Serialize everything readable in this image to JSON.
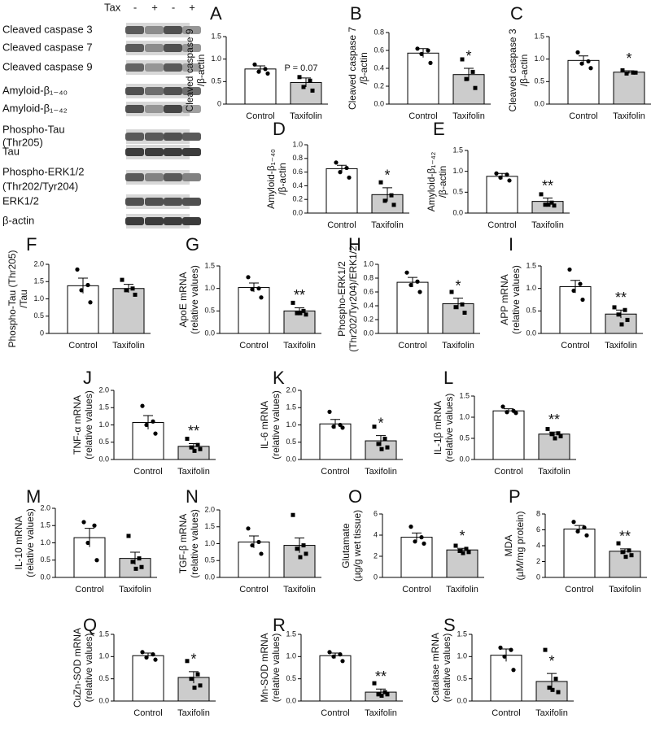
{
  "blot": {
    "lane_header": "Tax",
    "lanes": [
      "-",
      "+",
      "-",
      "+"
    ],
    "labels": [
      "Cleaved caspase 3",
      "Cleaved caspase 7",
      "Cleaved caspase 9",
      "Amyloid-β₁₋₄₀",
      "Amyloid-β₁₋₄₂",
      "Phospho-Tau",
      "(Thr205)",
      "Tau",
      "Phospho-ERK1/2",
      "(Thr202/Tyr204)",
      "ERK1/2",
      "β-actin"
    ]
  },
  "chart_data": [
    {
      "type": "bar",
      "panel": "A",
      "ylabel": [
        "Cleaved caspase 9",
        "/β-actin"
      ],
      "categories": [
        "Control",
        "Taxifolin"
      ],
      "colors": [
        "#ffffff",
        "#cccccc"
      ],
      "values": [
        0.78,
        0.48
      ],
      "errors": [
        0.07,
        0.1
      ],
      "points": [
        [
          0.88,
          0.78,
          0.72,
          0.68
        ],
        [
          0.6,
          0.52,
          0.38,
          0.3
        ]
      ],
      "annotation": "P = 0.07",
      "ylim": [
        0,
        1.5
      ],
      "yticks": [
        0,
        0.5,
        {
          "value": 1,
          "label": "1.0"
        },
        1.5
      ]
    },
    {
      "type": "bar",
      "panel": "B",
      "ylabel": [
        "Cleaved caspase 7",
        "/β-actin"
      ],
      "categories": [
        "Control",
        "Taxifolin"
      ],
      "colors": [
        "#ffffff",
        "#cccccc"
      ],
      "values": [
        0.57,
        0.33
      ],
      "errors": [
        0.05,
        0.07
      ],
      "points": [
        [
          0.62,
          0.6,
          0.56,
          0.46
        ],
        [
          0.5,
          0.36,
          0.28,
          0.18
        ]
      ],
      "annotation": "*",
      "ylim": [
        0,
        0.8
      ],
      "yticks": [
        {
          "value": 0,
          "label": "0.0"
        },
        0.2,
        0.4,
        0.6,
        0.8
      ]
    },
    {
      "type": "bar",
      "panel": "C",
      "ylabel": [
        "Cleaved caspase 3",
        "/β-actin"
      ],
      "categories": [
        "Control",
        "Taxifolin"
      ],
      "colors": [
        "#ffffff",
        "#cccccc"
      ],
      "values": [
        0.97,
        0.71
      ],
      "errors": [
        0.1,
        0.03
      ],
      "points": [
        [
          1.15,
          0.95,
          0.9,
          0.8
        ],
        [
          0.75,
          0.7,
          0.68,
          0.7
        ]
      ],
      "annotation": "*",
      "ylim": [
        0,
        1.5
      ],
      "yticks": [
        {
          "value": 0,
          "label": "0.0"
        },
        0.5,
        {
          "value": 1,
          "label": "1.0"
        },
        1.5
      ]
    },
    {
      "type": "bar",
      "panel": "D",
      "ylabel": [
        "Amyloid-β₁₋₄₀",
        "/β-actin"
      ],
      "categories": [
        "Control",
        "Taxifolin"
      ],
      "colors": [
        "#ffffff",
        "#cccccc"
      ],
      "values": [
        0.65,
        0.27
      ],
      "errors": [
        0.05,
        0.1
      ],
      "points": [
        [
          0.74,
          0.66,
          0.6,
          0.52
        ],
        [
          0.45,
          0.26,
          0.18,
          0.12
        ]
      ],
      "annotation": "*",
      "ylim": [
        0,
        1
      ],
      "yticks": [
        {
          "value": 0,
          "label": "0.0"
        },
        0.2,
        0.4,
        0.6,
        0.8,
        {
          "value": 1,
          "label": "1.0"
        }
      ]
    },
    {
      "type": "bar",
      "panel": "E",
      "ylabel": [
        "Amyloid-β₁₋₄₂",
        "/β-actin"
      ],
      "categories": [
        "Control",
        "Taxifolin"
      ],
      "colors": [
        "#ffffff",
        "#cccccc"
      ],
      "values": [
        0.88,
        0.28
      ],
      "errors": [
        0.07,
        0.08
      ],
      "points": [
        [
          0.95,
          0.92,
          0.85,
          0.78
        ],
        [
          0.45,
          0.25,
          0.2,
          0.18,
          0.2
        ]
      ],
      "annotation": "**",
      "ylim": [
        0,
        1.5
      ],
      "yticks": [
        {
          "value": 0,
          "label": "0.0"
        },
        0.5,
        {
          "value": 1,
          "label": "1.0"
        },
        1.5
      ]
    },
    {
      "type": "bar",
      "panel": "F",
      "ylabel": [
        "Phospho-Tau (Thr205)",
        "/Tau"
      ],
      "categories": [
        "Control",
        "Taxifolin"
      ],
      "colors": [
        "#ffffff",
        "#cccccc"
      ],
      "values": [
        1.38,
        1.3
      ],
      "errors": [
        0.22,
        0.12
      ],
      "points": [
        [
          1.85,
          1.4,
          1.25,
          0.9
        ],
        [
          1.55,
          1.3,
          1.25,
          1.12
        ]
      ],
      "ylim": [
        0,
        2
      ],
      "yticks": [
        0,
        0.5,
        {
          "value": 1,
          "label": "1.0"
        },
        1.5,
        {
          "value": 2,
          "label": "2.0"
        }
      ]
    },
    {
      "type": "bar",
      "panel": "G",
      "ylabel": [
        "ApoE mRNA",
        "(relative values)"
      ],
      "categories": [
        "Control",
        "Taxifolin"
      ],
      "colors": [
        "#ffffff",
        "#cccccc"
      ],
      "values": [
        1.02,
        0.5
      ],
      "errors": [
        0.1,
        0.07
      ],
      "points": [
        [
          1.25,
          1.0,
          0.98,
          0.8
        ],
        [
          0.68,
          0.5,
          0.45,
          0.42,
          0.45
        ]
      ],
      "annotation": "**",
      "ylim": [
        0,
        1.5
      ],
      "yticks": [
        {
          "value": 0,
          "label": "0.0"
        },
        0.5,
        {
          "value": 1,
          "label": "1.0"
        },
        1.5
      ]
    },
    {
      "type": "bar",
      "panel": "H",
      "ylabel": [
        "Phospho-ERK1/2",
        "(Thr202/Tyr204)/ERK1/2"
      ],
      "categories": [
        "Control",
        "Taxifolin"
      ],
      "colors": [
        "#ffffff",
        "#cccccc"
      ],
      "values": [
        0.74,
        0.43
      ],
      "errors": [
        0.07,
        0.08
      ],
      "points": [
        [
          0.88,
          0.75,
          0.7,
          0.6
        ],
        [
          0.6,
          0.42,
          0.38,
          0.3
        ]
      ],
      "annotation": "*",
      "ylim": [
        0,
        1
      ],
      "yticks": [
        {
          "value": 0,
          "label": "0.0"
        },
        0.2,
        0.4,
        0.6,
        0.8,
        {
          "value": 1,
          "label": "1.0"
        }
      ]
    },
    {
      "type": "bar",
      "panel": "I",
      "ylabel": [
        "APP mRNA",
        "(relative values)"
      ],
      "categories": [
        "Control",
        "Taxifolin"
      ],
      "colors": [
        "#ffffff",
        "#cccccc"
      ],
      "values": [
        1.04,
        0.43
      ],
      "errors": [
        0.14,
        0.09
      ],
      "points": [
        [
          1.42,
          1.1,
          0.95,
          0.75
        ],
        [
          0.58,
          0.52,
          0.42,
          0.3,
          0.2
        ]
      ],
      "annotation": "**",
      "ylim": [
        0,
        1.5
      ],
      "yticks": [
        {
          "value": 0,
          "label": "0.0"
        },
        0.5,
        {
          "value": 1,
          "label": "1.0"
        },
        1.5
      ]
    },
    {
      "type": "bar",
      "panel": "J",
      "ylabel": [
        "TNF-α mRNA",
        "(relative values)"
      ],
      "categories": [
        "Control",
        "Taxifolin"
      ],
      "colors": [
        "#ffffff",
        "#cccccc"
      ],
      "values": [
        1.07,
        0.38
      ],
      "errors": [
        0.2,
        0.08
      ],
      "points": [
        [
          1.55,
          1.1,
          1.0,
          0.75
        ],
        [
          0.6,
          0.42,
          0.35,
          0.3,
          0.25
        ]
      ],
      "annotation": "**",
      "ylim": [
        0,
        2
      ],
      "yticks": [
        {
          "value": 0,
          "label": "0.0"
        },
        0.5,
        {
          "value": 1,
          "label": "1.0"
        },
        1.5,
        {
          "value": 2,
          "label": "2.0"
        }
      ]
    },
    {
      "type": "bar",
      "panel": "K",
      "ylabel": [
        "IL-6 mRNA",
        "(relative values)"
      ],
      "categories": [
        "Control",
        "Taxifolin"
      ],
      "colors": [
        "#ffffff",
        "#cccccc"
      ],
      "values": [
        1.03,
        0.54
      ],
      "errors": [
        0.13,
        0.15
      ],
      "points": [
        [
          1.38,
          1.0,
          0.95,
          0.92
        ],
        [
          0.95,
          0.6,
          0.45,
          0.35,
          0.3
        ]
      ],
      "annotation": "*",
      "ylim": [
        0,
        2
      ],
      "yticks": [
        {
          "value": 0,
          "label": "0.0"
        },
        0.5,
        {
          "value": 1,
          "label": "1.0"
        },
        1.5,
        {
          "value": 2,
          "label": "2.0"
        }
      ]
    },
    {
      "type": "bar",
      "panel": "L",
      "ylabel": [
        "IL-1β mRNA",
        "(relative values)"
      ],
      "categories": [
        "Control",
        "Taxifolin"
      ],
      "colors": [
        "#ffffff",
        "#cccccc"
      ],
      "values": [
        1.15,
        0.6
      ],
      "errors": [
        0.05,
        0.05
      ],
      "points": [
        [
          1.25,
          1.15,
          1.12,
          1.1
        ],
        [
          0.72,
          0.62,
          0.6,
          0.55,
          0.5
        ]
      ],
      "annotation": "**",
      "ylim": [
        0,
        1.5
      ],
      "yticks": [
        {
          "value": 0,
          "label": "0.0"
        },
        0.5,
        {
          "value": 1,
          "label": "1.0"
        },
        1.5
      ]
    },
    {
      "type": "bar",
      "panel": "M",
      "ylabel": [
        "IL-10 mRNA",
        "(relative values)"
      ],
      "categories": [
        "Control",
        "Taxifolin"
      ],
      "colors": [
        "#ffffff",
        "#cccccc"
      ],
      "values": [
        1.15,
        0.55
      ],
      "errors": [
        0.27,
        0.18
      ],
      "points": [
        [
          1.6,
          1.5,
          1.0,
          0.5
        ],
        [
          1.2,
          0.55,
          0.45,
          0.3,
          0.25
        ]
      ],
      "ylim": [
        0,
        2
      ],
      "yticks": [
        {
          "value": 0,
          "label": "0.0"
        },
        0.5,
        {
          "value": 1,
          "label": "1.0"
        },
        1.5,
        {
          "value": 2,
          "label": "2.0"
        }
      ]
    },
    {
      "type": "bar",
      "panel": "N",
      "ylabel": [
        "TGF-β mRNA",
        "(relative values)"
      ],
      "categories": [
        "Control",
        "Taxifolin"
      ],
      "colors": [
        "#ffffff",
        "#cccccc"
      ],
      "values": [
        1.05,
        0.95
      ],
      "errors": [
        0.18,
        0.22
      ],
      "points": [
        [
          1.45,
          1.05,
          0.95,
          0.7
        ],
        [
          1.85,
          0.95,
          0.85,
          0.7,
          0.6
        ]
      ],
      "ylim": [
        0,
        2
      ],
      "yticks": [
        {
          "value": 0,
          "label": "0.0"
        },
        0.5,
        {
          "value": 1,
          "label": "1.0"
        },
        1.5,
        {
          "value": 2,
          "label": "2.0"
        }
      ]
    },
    {
      "type": "bar",
      "panel": "O",
      "ylabel": [
        "Glutamate",
        "(µg/g wet tissue)"
      ],
      "categories": [
        "Control",
        "Taxifolin"
      ],
      "colors": [
        "#ffffff",
        "#cccccc"
      ],
      "values": [
        3.8,
        2.6
      ],
      "errors": [
        0.4,
        0.15
      ],
      "points": [
        [
          4.8,
          3.8,
          3.4,
          3.2
        ],
        [
          3.0,
          2.7,
          2.5,
          2.4,
          2.3
        ]
      ],
      "annotation": "*",
      "ylim": [
        0,
        6
      ],
      "yticks": [
        0,
        2,
        4,
        6
      ]
    },
    {
      "type": "bar",
      "panel": "P",
      "ylabel": [
        "MDA",
        "(µM/mg protein)"
      ],
      "categories": [
        "Control",
        "Taxifolin"
      ],
      "colors": [
        "#ffffff",
        "#cccccc"
      ],
      "values": [
        6.1,
        3.3
      ],
      "errors": [
        0.45,
        0.3
      ],
      "points": [
        [
          7.0,
          6.3,
          5.8,
          5.3
        ],
        [
          4.3,
          3.4,
          3.2,
          2.8,
          2.6
        ]
      ],
      "annotation": "**",
      "ylim": [
        0,
        8
      ],
      "yticks": [
        0,
        2,
        4,
        6,
        8
      ]
    },
    {
      "type": "bar",
      "panel": "Q",
      "ylabel": [
        "CuZn-SOD mRNA",
        "(relative values)"
      ],
      "categories": [
        "Control",
        "Taxifolin"
      ],
      "colors": [
        "#ffffff",
        "#cccccc"
      ],
      "values": [
        1.02,
        0.53
      ],
      "errors": [
        0.06,
        0.13
      ],
      "points": [
        [
          1.1,
          1.05,
          0.98,
          0.93
        ],
        [
          0.9,
          0.6,
          0.5,
          0.35,
          0.3
        ]
      ],
      "annotation": "*",
      "ylim": [
        0,
        1.5
      ],
      "yticks": [
        {
          "value": 0,
          "label": "0.0"
        },
        0.5,
        {
          "value": 1,
          "label": "1.0"
        },
        1.5
      ]
    },
    {
      "type": "bar",
      "panel": "R",
      "ylabel": [
        "Mn-SOD mRNA",
        "(relative values)"
      ],
      "categories": [
        "Control",
        "Taxifolin"
      ],
      "colors": [
        "#ffffff",
        "#cccccc"
      ],
      "values": [
        1.02,
        0.2
      ],
      "errors": [
        0.06,
        0.07
      ],
      "points": [
        [
          1.1,
          1.05,
          1.0,
          0.9
        ],
        [
          0.4,
          0.2,
          0.15,
          0.15,
          0.12
        ]
      ],
      "annotation": "**",
      "ylim": [
        0,
        1.5
      ],
      "yticks": [
        {
          "value": 0,
          "label": "0.0"
        },
        0.5,
        {
          "value": 1,
          "label": "1.0"
        },
        1.5
      ]
    },
    {
      "type": "bar",
      "panel": "S",
      "ylabel": [
        "Catalase mRNA",
        "(relative values)"
      ],
      "categories": [
        "Control",
        "Taxifolin"
      ],
      "colors": [
        "#ffffff",
        "#cccccc"
      ],
      "values": [
        1.03,
        0.44
      ],
      "errors": [
        0.14,
        0.18
      ],
      "points": [
        [
          1.2,
          1.15,
          1.0,
          0.7
        ],
        [
          1.15,
          0.5,
          0.3,
          0.2,
          0.25
        ]
      ],
      "annotation": "*",
      "ylim": [
        0,
        1.5
      ],
      "yticks": [
        {
          "value": 0,
          "label": "0.0"
        },
        0.5,
        {
          "value": 1,
          "label": "1.0"
        },
        1.5
      ]
    }
  ]
}
